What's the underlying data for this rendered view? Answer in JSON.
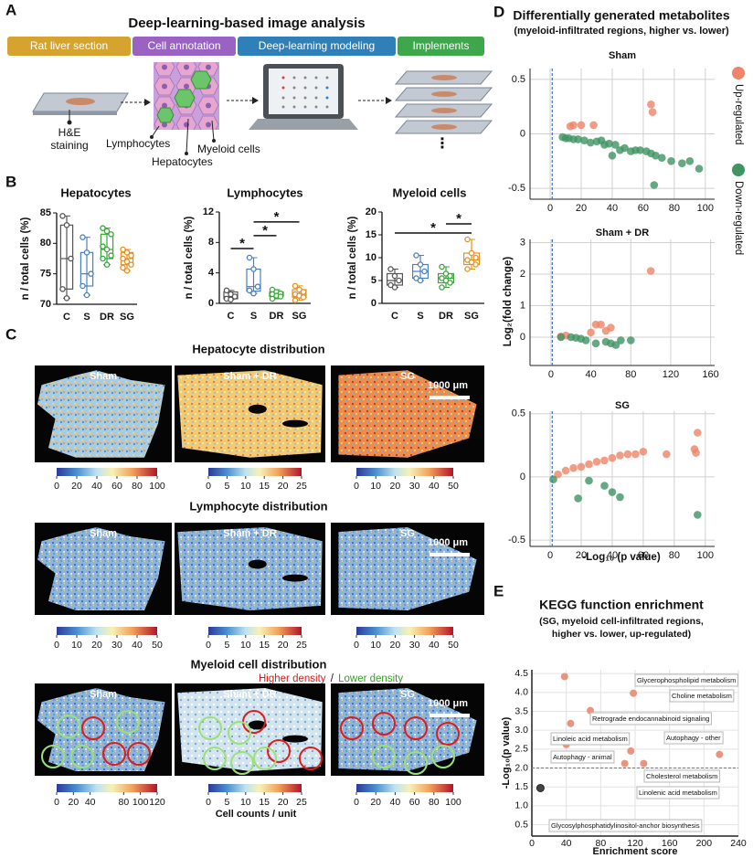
{
  "panel_a": {
    "letter": "A",
    "title": "Deep-learning-based image analysis",
    "steps": [
      "Rat liver section",
      "Cell annotation",
      "Deep-learning modeling",
      "Implements"
    ],
    "step_colors": [
      "#d6a32e",
      "#9a62c2",
      "#2f80b9",
      "#3ea64b"
    ],
    "staining_label": [
      "H&E",
      "staining"
    ],
    "cell_labels": [
      "Lymphocytes",
      "Hepatocytes",
      "Myeloid cells"
    ],
    "more": "⋮"
  },
  "panel_b": {
    "letter": "B"
  },
  "panel_c": {
    "letter": "C",
    "rows": [
      {
        "title": "Hepatocyte distribution",
        "columns": [
          "Sham",
          "Sham + DR",
          "SG"
        ],
        "scale_bar": "1000 μm",
        "colorbars": [
          {
            "lim": [
              0,
              100
            ],
            "ticks": [
              0,
              20,
              40,
              60,
              80,
              100
            ]
          },
          {
            "lim": [
              0,
              25
            ],
            "ticks": [
              0,
              5,
              10,
              15,
              20,
              25
            ]
          },
          {
            "lim": [
              0,
              50
            ],
            "ticks": [
              0,
              10,
              20,
              30,
              40,
              50
            ]
          }
        ]
      },
      {
        "title": "Lymphocyte distribution",
        "columns": [
          "Sham",
          "Sham + DR",
          "SG"
        ],
        "scale_bar": "1000 μm",
        "colorbars": [
          {
            "lim": [
              0,
              50
            ],
            "ticks": [
              0,
              10,
              20,
              30,
              40,
              50
            ]
          },
          {
            "lim": [
              0,
              25
            ],
            "ticks": [
              0,
              5,
              10,
              15,
              20,
              25
            ]
          },
          {
            "lim": [
              0,
              50
            ],
            "ticks": [
              0,
              10,
              20,
              30,
              40,
              50
            ]
          }
        ]
      },
      {
        "title": "Myeloid cell distribution",
        "columns": [
          "Sham",
          "Sham + DR",
          "SG"
        ],
        "scale_bar": "1000 μm",
        "colorbars": [
          {
            "lim": [
              0,
              120
            ],
            "ticks": [
              0,
              20,
              40,
              80,
              100,
              120
            ]
          },
          {
            "lim": [
              0,
              25
            ],
            "ticks": [
              0,
              5,
              10,
              15,
              20,
              25
            ]
          },
          {
            "lim": [
              0,
              100
            ],
            "ticks": [
              0,
              20,
              40,
              60,
              80,
              100
            ]
          }
        ]
      }
    ],
    "density_legend": {
      "higher": "Higher density",
      "separator": "/",
      "lower": "Lower density"
    },
    "unit_label": "Cell counts / unit"
  },
  "panel_d": {
    "letter": "D",
    "title": "Differentially generated metabolites",
    "subtitle": "(myeloid-infiltrated regions, higher vs. lower)",
    "x_label": "-Log₁₀ (p value)",
    "y_label": "Log₂(fold change)"
  },
  "panel_e": {
    "letter": "E"
  },
  "chart_data": [
    {
      "type": "box",
      "title": "Hepatocytes",
      "y_label": "n / total cells (%)",
      "categories": [
        "C",
        "S",
        "DR",
        "SG"
      ],
      "colors": [
        "#555555",
        "#4a80c4",
        "#3aa53a",
        "#e8901e"
      ],
      "ylim": [
        70,
        85
      ],
      "yticks": [
        70,
        75,
        80,
        85
      ],
      "boxes": [
        {
          "min": 71,
          "q1": 72.5,
          "median": 77.5,
          "q3": 83,
          "max": 84.5
        },
        {
          "min": 71.5,
          "q1": 73,
          "median": 75,
          "q3": 78.5,
          "max": 81
        },
        {
          "min": 76.5,
          "q1": 77.5,
          "median": 79,
          "q3": 81.5,
          "max": 82.5
        },
        {
          "min": 75.5,
          "q1": 76.5,
          "median": 77.5,
          "q3": 78.5,
          "max": 79
        }
      ],
      "points": [
        [
          84.5,
          83,
          77.5,
          72.5,
          71
        ],
        [
          81,
          78.5,
          75,
          73,
          71.5
        ],
        [
          82.5,
          82,
          81.5,
          79.5,
          79,
          78,
          77.5,
          76.5
        ],
        [
          79,
          78.5,
          78,
          77.5,
          77,
          76.5,
          76,
          75.5
        ]
      ],
      "annotations": []
    },
    {
      "type": "box",
      "title": "Lymphocytes",
      "y_label": "n / total cells (%)",
      "categories": [
        "C",
        "S",
        "DR",
        "SG"
      ],
      "colors": [
        "#555555",
        "#4a80c4",
        "#3aa53a",
        "#e8901e"
      ],
      "ylim": [
        0,
        12
      ],
      "yticks": [
        0,
        4,
        8,
        12
      ],
      "boxes": [
        {
          "min": 0.5,
          "q1": 0.6,
          "median": 0.9,
          "q3": 1.5,
          "max": 1.7
        },
        {
          "min": 1.3,
          "q1": 1.6,
          "median": 2.2,
          "q3": 4.5,
          "max": 6
        },
        {
          "min": 0.6,
          "q1": 0.9,
          "median": 1.2,
          "q3": 1.5,
          "max": 1.8
        },
        {
          "min": 0.4,
          "q1": 0.8,
          "median": 1.2,
          "q3": 1.8,
          "max": 2.3
        }
      ],
      "points": [
        [
          1.7,
          1.2,
          0.9,
          0.6,
          0.5
        ],
        [
          6,
          4.5,
          2.2,
          1.7,
          1.3
        ],
        [
          1.8,
          1.5,
          1.3,
          1.2,
          1,
          0.9,
          0.6
        ],
        [
          2.3,
          1.8,
          1.5,
          1.2,
          1,
          0.8,
          0.4
        ]
      ],
      "annotations": [
        "*",
        "*",
        "*"
      ]
    },
    {
      "type": "box",
      "title": "Myeloid cells",
      "y_label": "n / total cells (%)",
      "categories": [
        "C",
        "S",
        "DR",
        "SG"
      ],
      "colors": [
        "#555555",
        "#4a80c4",
        "#3aa53a",
        "#e8901e"
      ],
      "ylim": [
        0,
        20
      ],
      "yticks": [
        0,
        5,
        10,
        15,
        20
      ],
      "boxes": [
        {
          "min": 3.5,
          "q1": 4,
          "median": 5,
          "q3": 6.5,
          "max": 7.5
        },
        {
          "min": 5,
          "q1": 5.5,
          "median": 7,
          "q3": 8.5,
          "max": 10.5
        },
        {
          "min": 3.5,
          "q1": 4.5,
          "median": 5.5,
          "q3": 6.5,
          "max": 8
        },
        {
          "min": 7.5,
          "q1": 8.5,
          "median": 9.5,
          "q3": 11,
          "max": 14
        }
      ],
      "points": [
        [
          7.5,
          6,
          5,
          4,
          3.5
        ],
        [
          10.5,
          8.5,
          7,
          5.5,
          5
        ],
        [
          8,
          6.5,
          6,
          5.5,
          5,
          4.5,
          3.5
        ],
        [
          14,
          11,
          10,
          9.5,
          9,
          8.5,
          7.5
        ]
      ],
      "annotations": [
        "*",
        "*"
      ]
    },
    {
      "type": "scatter",
      "title": "Sham",
      "xlim": [
        -13,
        106
      ],
      "xticks": [
        0,
        20,
        40,
        60,
        80,
        100
      ],
      "ylim": [
        -0.6,
        0.6
      ],
      "yticks": [
        -0.5,
        0,
        0.5
      ],
      "vline": 1.3,
      "grid": true,
      "series": [
        {
          "name": "Up-regulated",
          "color": "#ee8468",
          "x": [
            13,
            15,
            20,
            28,
            65,
            66
          ],
          "values": [
            0.07,
            0.08,
            0.08,
            0.08,
            0.27,
            0.2
          ]
        },
        {
          "name": "Down-regulated",
          "color": "#3f9463",
          "x": [
            8,
            10,
            12,
            15,
            18,
            22,
            26,
            30,
            33,
            35,
            38,
            40,
            42,
            45,
            48,
            52,
            55,
            58,
            62,
            65,
            67,
            68,
            72,
            78,
            85,
            90,
            96
          ],
          "values": [
            -0.03,
            -0.04,
            -0.04,
            -0.05,
            -0.05,
            -0.06,
            -0.08,
            -0.07,
            -0.06,
            -0.1,
            -0.09,
            -0.2,
            -0.1,
            -0.15,
            -0.13,
            -0.16,
            -0.15,
            -0.15,
            -0.16,
            -0.18,
            -0.47,
            -0.2,
            -0.22,
            -0.25,
            -0.27,
            -0.25,
            -0.32
          ]
        }
      ]
    },
    {
      "type": "scatter",
      "title": "Sham + DR",
      "xlim": [
        -21,
        164
      ],
      "xticks": [
        0,
        40,
        80,
        120,
        160
      ],
      "ylim": [
        -0.9,
        3.1
      ],
      "yticks": [
        0,
        1,
        2,
        3
      ],
      "vline": 1.3,
      "grid": true,
      "series": [
        {
          "name": "Up-regulated",
          "color": "#ee8468",
          "x": [
            10,
            15,
            40,
            45,
            50,
            55,
            60,
            100
          ],
          "values": [
            0.02,
            0.05,
            0.15,
            0.4,
            0.4,
            0.2,
            0.3,
            2.1
          ]
        },
        {
          "name": "Down-regulated",
          "color": "#3f9463",
          "x": [
            10,
            20,
            25,
            30,
            35,
            45,
            55,
            60,
            65,
            70,
            80
          ],
          "values": [
            0,
            0,
            -0.02,
            -0.05,
            -0.1,
            -0.2,
            -0.15,
            -0.2,
            -0.25,
            -0.1,
            -0.1
          ]
        }
      ]
    },
    {
      "type": "scatter",
      "title": "SG",
      "xlim": [
        -13,
        106
      ],
      "xticks": [
        0,
        20,
        40,
        60,
        80,
        100
      ],
      "ylim": [
        -0.55,
        0.52
      ],
      "yticks": [
        -0.5,
        0,
        0.5
      ],
      "vline": 1.3,
      "grid": true,
      "series": [
        {
          "name": "Up-regulated",
          "color": "#ee8468",
          "x": [
            5,
            10,
            15,
            20,
            25,
            30,
            35,
            40,
            45,
            50,
            55,
            60,
            75,
            93,
            94,
            95
          ],
          "values": [
            0.02,
            0.05,
            0.07,
            0.08,
            0.1,
            0.12,
            0.13,
            0.15,
            0.17,
            0.18,
            0.18,
            0.2,
            0.18,
            0.22,
            0.19,
            0.35
          ]
        },
        {
          "name": "Down-regulated",
          "color": "#3f9463",
          "x": [
            2,
            18,
            25,
            35,
            40,
            45,
            95
          ],
          "values": [
            -0.02,
            -0.17,
            -0.03,
            -0.07,
            -0.12,
            -0.16,
            -0.3
          ]
        }
      ]
    },
    {
      "type": "enrichment",
      "title": "KEGG function enrichment",
      "subtitle": [
        "(SG, myeloid cell-infiltrated regions,",
        "higher vs. lower, up-regulated)"
      ],
      "x_label": "Enrichment score",
      "y_label": "-Log₁₀(p value)",
      "xlim": [
        0,
        240
      ],
      "xticks": [
        0,
        40,
        80,
        120,
        160,
        200,
        240
      ],
      "ylim": [
        0.2,
        4.6
      ],
      "yticks": [
        0.5,
        {
          "value": 1,
          "label": "1.0"
        },
        1.5,
        {
          "value": 2,
          "label": "2.0"
        },
        2.5,
        {
          "value": 3,
          "label": "3.0"
        },
        3.5,
        {
          "value": 4,
          "label": "4.0"
        },
        4.5
      ],
      "hline": 2,
      "grid": true,
      "series": [
        {
          "color": "#e8957f",
          "x": [
            38,
            118,
            45,
            68,
            218,
            108,
            130,
            115,
            40
          ],
          "values": [
            4.42,
            3.98,
            3.18,
            3.52,
            2.36,
            2.12,
            2.12,
            2.45,
            2.62
          ]
        },
        {
          "color": "#444444",
          "x": [
            10
          ],
          "values": [
            1.47
          ]
        }
      ],
      "labels": [
        "Glycerophospholipid metabolism",
        "Choline metabolism",
        "Retrograde endocannabinoid signaling",
        "Linoleic acid metabolism",
        "Autophagy - other",
        "Autophagy - animal",
        "Cholesterol metabolism",
        "Linolenic acid metabolism",
        "Glycosylphosphatidylinositol-anchor biosynthesis"
      ]
    }
  ]
}
